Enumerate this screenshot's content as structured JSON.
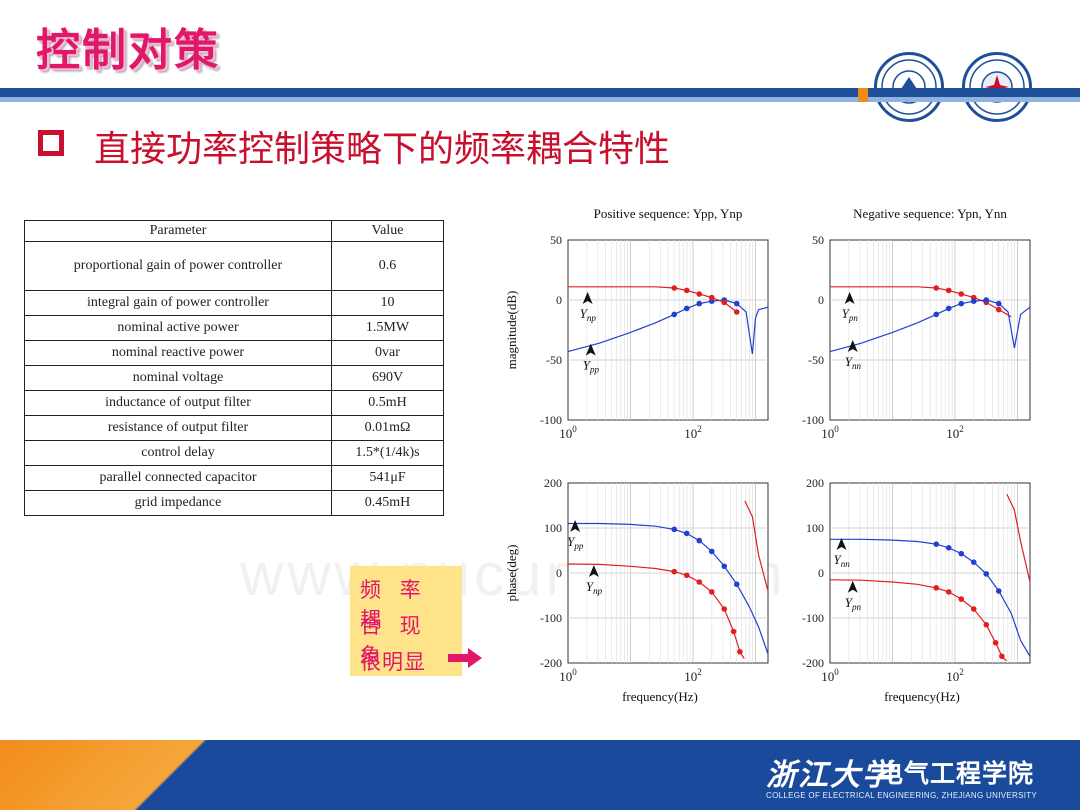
{
  "slide": {
    "title": "控制对策",
    "subtitle": "直接功率控制策略下的频率耦合特性",
    "watermark": "www.nucuntu.com"
  },
  "colors": {
    "title": "#e0186a",
    "subtitle": "#c8102e",
    "band": "#1f4f98",
    "accent": "#f08a18",
    "note_bg": "#ffe38a",
    "positive_trace": "#e02020",
    "negative_trace": "#2040d0"
  },
  "logos": [
    "zju-emblem-icon",
    "college-emblem-icon"
  ],
  "table": {
    "headers": [
      "Parameter",
      "Value"
    ],
    "rows": [
      [
        "proportional gain of power controller",
        "0.6"
      ],
      [
        "integral gain of power controller",
        "10"
      ],
      [
        "nominal active power",
        "1.5MW"
      ],
      [
        "nominal reactive power",
        "0var"
      ],
      [
        "nominal voltage",
        "690V"
      ],
      [
        "inductance of output filter",
        "0.5mH"
      ],
      [
        "resistance of output filter",
        "0.01mΩ"
      ],
      [
        "control delay",
        "1.5*(1/4k)s"
      ],
      [
        "parallel connected capacitor",
        "541μF"
      ],
      [
        "grid impedance",
        "0.45mH"
      ]
    ]
  },
  "note": {
    "lines": [
      "频 率 耦",
      "合 现 象",
      "很明显"
    ],
    "arrow_icon": "right-arrow-icon"
  },
  "footer": {
    "school": "浙江大学",
    "college": "电气工程学院",
    "english": "COLLEGE OF ELECTRICAL ENGINEERING, ZHEJIANG UNIVERSITY"
  },
  "chart_data": [
    {
      "type": "line",
      "panel": "positive-magnitude",
      "title": "Positive sequence:  Ypp, Ynp",
      "xlabel": "",
      "ylabel": "magnitude(dB)",
      "xscale": "log",
      "xlim_exp": [
        0,
        3.2
      ],
      "ylim": [
        -100,
        50
      ],
      "xtick_exponents": [
        0,
        2
      ],
      "yticks": [
        50,
        0,
        -50,
        -100
      ],
      "grid": true,
      "series": [
        {
          "name": "Ypp",
          "color": "#2040d0",
          "x_exp": [
            0,
            0.5,
            1,
            1.4,
            1.7,
            1.9,
            2.1,
            2.3,
            2.5,
            2.7,
            2.85,
            2.95,
            3.0,
            3.05,
            3.2
          ],
          "values": [
            -43,
            -36,
            -27,
            -19,
            -12,
            -7,
            -3,
            -1,
            0,
            -3,
            -10,
            -45,
            -15,
            -8,
            -6
          ]
        },
        {
          "name": "Ynp",
          "color": "#e02020",
          "x_exp": [
            0,
            0.5,
            1,
            1.4,
            1.7,
            1.9,
            2.1,
            2.3,
            2.5,
            2.7
          ],
          "values": [
            11,
            11,
            11,
            11,
            10,
            8,
            5,
            2,
            -2,
            -10
          ]
        }
      ],
      "annotations": [
        {
          "text": "Ynp",
          "x_exp": 0.25,
          "y": -15
        },
        {
          "text": "Ypp",
          "x_exp": 0.3,
          "y": -58
        }
      ]
    },
    {
      "type": "line",
      "panel": "negative-magnitude",
      "title": "Negative sequence:  Ypn, Ynn",
      "xlabel": "",
      "ylabel": "",
      "xscale": "log",
      "xlim_exp": [
        0,
        3.2
      ],
      "ylim": [
        -100,
        50
      ],
      "xtick_exponents": [
        0,
        2
      ],
      "yticks": [
        50,
        0,
        -50,
        -100
      ],
      "grid": true,
      "series": [
        {
          "name": "Ypn",
          "color": "#e02020",
          "x_exp": [
            0,
            0.5,
            1,
            1.4,
            1.7,
            1.9,
            2.1,
            2.3,
            2.5,
            2.7,
            2.9
          ],
          "values": [
            11,
            11,
            11,
            11,
            10,
            8,
            5,
            2,
            -2,
            -8,
            -14
          ]
        },
        {
          "name": "Ynn",
          "color": "#2040d0",
          "x_exp": [
            0,
            0.5,
            1,
            1.4,
            1.7,
            1.9,
            2.1,
            2.3,
            2.5,
            2.7,
            2.85,
            2.95,
            3.05,
            3.2
          ],
          "values": [
            -43,
            -36,
            -27,
            -19,
            -12,
            -7,
            -3,
            -1,
            0,
            -3,
            -10,
            -40,
            -12,
            -6
          ]
        }
      ],
      "annotations": [
        {
          "text": "Ypn",
          "x_exp": 0.25,
          "y": -15
        },
        {
          "text": "Ynn",
          "x_exp": 0.3,
          "y": -55
        }
      ]
    },
    {
      "type": "line",
      "panel": "positive-phase",
      "title": "",
      "xlabel": "frequency(Hz)",
      "ylabel": "phase(deg)",
      "xscale": "log",
      "xlim_exp": [
        0,
        3.2
      ],
      "ylim": [
        -200,
        200
      ],
      "xtick_exponents": [
        0,
        2
      ],
      "yticks": [
        200,
        100,
        0,
        -100,
        -200
      ],
      "grid": true,
      "series": [
        {
          "name": "Ypp",
          "color": "#2040d0",
          "x_exp": [
            0,
            0.5,
            1,
            1.4,
            1.7,
            1.9,
            2.1,
            2.3,
            2.5,
            2.7,
            2.9,
            3.05,
            3.2
          ],
          "values": [
            110,
            110,
            108,
            104,
            97,
            88,
            72,
            48,
            15,
            -25,
            -75,
            -120,
            -180
          ]
        },
        {
          "name": "Ynp",
          "color": "#e02020",
          "x_exp": [
            0,
            0.5,
            1,
            1.4,
            1.7,
            1.9,
            2.1,
            2.3,
            2.5,
            2.65,
            2.75,
            2.82,
            2.83,
            2.95,
            3.05,
            3.2
          ],
          "values": [
            20,
            19,
            15,
            10,
            3,
            -5,
            -20,
            -42,
            -80,
            -130,
            -175,
            -190,
            160,
            125,
            40,
            -40
          ]
        }
      ],
      "annotations": [
        {
          "text": "Ypp",
          "x_exp": 0.05,
          "y": 60
        },
        {
          "text": "Ynp",
          "x_exp": 0.35,
          "y": -40
        }
      ]
    },
    {
      "type": "line",
      "panel": "negative-phase",
      "title": "",
      "xlabel": "frequency(Hz)",
      "ylabel": "",
      "xscale": "log",
      "xlim_exp": [
        0,
        3.2
      ],
      "ylim": [
        -200,
        200
      ],
      "xtick_exponents": [
        0,
        2
      ],
      "yticks": [
        200,
        100,
        0,
        -100,
        -200
      ],
      "grid": true,
      "series": [
        {
          "name": "Ynn",
          "color": "#2040d0",
          "x_exp": [
            0,
            0.5,
            1,
            1.4,
            1.7,
            1.9,
            2.1,
            2.3,
            2.5,
            2.7,
            2.9,
            3.05,
            3.2
          ],
          "values": [
            75,
            75,
            73,
            70,
            64,
            56,
            43,
            24,
            -2,
            -40,
            -90,
            -150,
            -185
          ]
        },
        {
          "name": "Ypn",
          "color": "#e02020",
          "x_exp": [
            0,
            0.5,
            1,
            1.4,
            1.7,
            1.9,
            2.1,
            2.3,
            2.5,
            2.65,
            2.75,
            2.82,
            2.83,
            2.95,
            3.05,
            3.2
          ],
          "values": [
            -15,
            -16,
            -20,
            -25,
            -33,
            -42,
            -58,
            -80,
            -115,
            -155,
            -185,
            -195,
            175,
            140,
            70,
            -20
          ]
        }
      ],
      "annotations": [
        {
          "text": "Ynn",
          "x_exp": 0.12,
          "y": 20
        },
        {
          "text": "Ypn",
          "x_exp": 0.3,
          "y": -75
        }
      ]
    }
  ]
}
